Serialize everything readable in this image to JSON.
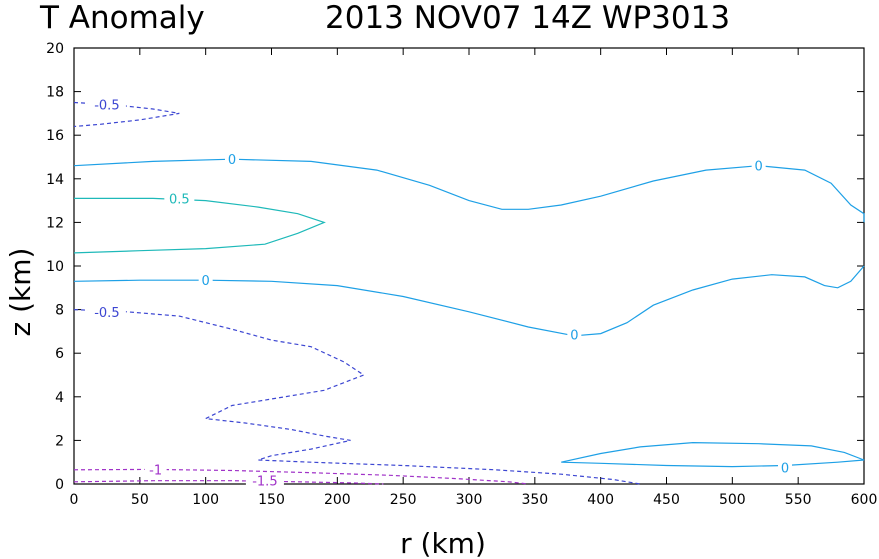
{
  "chart_data": {
    "type": "contour",
    "title_left": "T Anomaly",
    "title_right": "2013 NOV07 14Z  WP3013",
    "xlabel": "r (km)",
    "ylabel": "z (km)",
    "xlim": [
      0,
      600
    ],
    "ylim": [
      0,
      20
    ],
    "x_ticks": [
      0,
      50,
      100,
      150,
      200,
      250,
      300,
      350,
      400,
      450,
      500,
      550,
      600
    ],
    "x_tick_labels": [
      "0",
      "50",
      "100",
      "150",
      "200",
      "250",
      "300",
      "350",
      "400",
      "450",
      "500",
      "550",
      "600"
    ],
    "y_ticks": [
      0,
      2,
      4,
      6,
      8,
      10,
      12,
      14,
      16,
      18,
      20
    ],
    "y_tick_labels": [
      "0",
      "2",
      "4",
      "6",
      "8",
      "10",
      "12",
      "14",
      "16",
      "18",
      "20"
    ],
    "grid": false,
    "contours": [
      {
        "level": -0.5,
        "label": "-0.5",
        "color": "#3c46d2",
        "dashed": true,
        "points": [
          [
            0,
            17.5
          ],
          [
            30,
            17.4
          ],
          [
            60,
            17.2
          ],
          [
            80,
            17.0
          ],
          [
            50,
            16.7
          ],
          [
            20,
            16.5
          ],
          [
            0,
            16.4
          ]
        ],
        "label_pos": [
          25,
          17.4
        ]
      },
      {
        "level": 0,
        "label": "0",
        "color": "#1ea0e6",
        "dashed": false,
        "points": [
          [
            0,
            14.6
          ],
          [
            60,
            14.8
          ],
          [
            120,
            14.9
          ],
          [
            180,
            14.8
          ],
          [
            230,
            14.4
          ],
          [
            270,
            13.7
          ],
          [
            300,
            13.0
          ],
          [
            325,
            12.6
          ],
          [
            345,
            12.6
          ],
          [
            370,
            12.8
          ],
          [
            400,
            13.2
          ],
          [
            440,
            13.9
          ],
          [
            480,
            14.4
          ],
          [
            520,
            14.6
          ],
          [
            555,
            14.4
          ],
          [
            575,
            13.8
          ],
          [
            590,
            12.8
          ],
          [
            600,
            12.4
          ],
          [
            600,
            12.0
          ]
        ],
        "label_pos": [
          120,
          14.9
        ]
      },
      {
        "level": 0,
        "label": "0",
        "color": "#1ea0e6",
        "dashed": false,
        "points": [
          [
            0,
            0
          ],
          [
            0,
            0
          ]
        ],
        "label_pos": [
          520,
          14.6
        ]
      },
      {
        "level": 0.5,
        "label": "0.5",
        "color": "#1eb9b9",
        "dashed": false,
        "points": [
          [
            0,
            13.1
          ],
          [
            60,
            13.1
          ],
          [
            100,
            13.0
          ],
          [
            140,
            12.7
          ],
          [
            170,
            12.4
          ],
          [
            190,
            12.0
          ],
          [
            170,
            11.5
          ],
          [
            145,
            11.0
          ],
          [
            100,
            10.8
          ],
          [
            50,
            10.7
          ],
          [
            0,
            10.6
          ]
        ],
        "label_pos": [
          80,
          13.1
        ]
      },
      {
        "level": 0,
        "label": "0",
        "color": "#1ea0e6",
        "dashed": false,
        "points": [
          [
            0,
            9.3
          ],
          [
            50,
            9.35
          ],
          [
            100,
            9.35
          ],
          [
            150,
            9.3
          ],
          [
            200,
            9.1
          ],
          [
            250,
            8.6
          ],
          [
            300,
            7.9
          ],
          [
            345,
            7.2
          ],
          [
            380,
            6.8
          ],
          [
            400,
            6.9
          ],
          [
            420,
            7.4
          ],
          [
            440,
            8.2
          ],
          [
            470,
            8.9
          ],
          [
            500,
            9.4
          ],
          [
            530,
            9.6
          ],
          [
            555,
            9.5
          ],
          [
            570,
            9.1
          ],
          [
            580,
            9.0
          ],
          [
            590,
            9.3
          ],
          [
            600,
            10.0
          ]
        ],
        "label_pos": [
          100,
          9.35
        ]
      },
      {
        "level": 0,
        "label": "0",
        "color": "#1ea0e6",
        "dashed": false,
        "points": [
          [
            0,
            0
          ],
          [
            0,
            0
          ]
        ],
        "label_pos": [
          380,
          6.85
        ]
      },
      {
        "level": -0.5,
        "label": "-0.5",
        "color": "#3c46d2",
        "dashed": true,
        "points": [
          [
            0,
            8.0
          ],
          [
            40,
            7.9
          ],
          [
            80,
            7.7
          ],
          [
            120,
            7.1
          ],
          [
            150,
            6.6
          ],
          [
            180,
            6.3
          ],
          [
            205,
            5.6
          ],
          [
            220,
            5.0
          ],
          [
            190,
            4.3
          ],
          [
            150,
            3.9
          ],
          [
            120,
            3.6
          ],
          [
            100,
            3.0
          ],
          [
            130,
            2.8
          ],
          [
            165,
            2.5
          ],
          [
            190,
            2.2
          ],
          [
            210,
            2.0
          ],
          [
            180,
            1.6
          ],
          [
            150,
            1.3
          ],
          [
            140,
            1.1
          ],
          [
            180,
            1.0
          ],
          [
            250,
            0.85
          ],
          [
            320,
            0.65
          ],
          [
            370,
            0.45
          ],
          [
            410,
            0.2
          ],
          [
            430,
            0.0
          ]
        ],
        "label_pos": [
          25,
          7.9
        ]
      },
      {
        "level": 0,
        "label": "0",
        "color": "#1ea0e6",
        "dashed": false,
        "points": [
          [
            370,
            1.0
          ],
          [
            400,
            1.4
          ],
          [
            430,
            1.7
          ],
          [
            470,
            1.9
          ],
          [
            520,
            1.85
          ],
          [
            560,
            1.75
          ],
          [
            585,
            1.45
          ],
          [
            600,
            1.1
          ],
          [
            580,
            1.0
          ],
          [
            540,
            0.85
          ],
          [
            500,
            0.8
          ],
          [
            450,
            0.85
          ],
          [
            400,
            0.95
          ],
          [
            370,
            1.0
          ]
        ],
        "label_pos": [
          540,
          0.75
        ]
      },
      {
        "level": -1,
        "label": "-1",
        "color": "#a032c8",
        "dashed": true,
        "points": [
          [
            0,
            0.65
          ],
          [
            60,
            0.67
          ],
          [
            120,
            0.62
          ],
          [
            180,
            0.52
          ],
          [
            240,
            0.4
          ],
          [
            290,
            0.25
          ],
          [
            330,
            0.1
          ],
          [
            345,
            0.0
          ]
        ],
        "label_pos": [
          62,
          0.67
        ]
      },
      {
        "level": -1.5,
        "label": "-1.5",
        "color": "#a032c8",
        "dashed": true,
        "points": [
          [
            0,
            0.1
          ],
          [
            60,
            0.15
          ],
          [
            120,
            0.15
          ],
          [
            170,
            0.1
          ],
          [
            210,
            0.05
          ],
          [
            235,
            0.0
          ]
        ],
        "label_pos": [
          145,
          0.15
        ]
      }
    ]
  }
}
